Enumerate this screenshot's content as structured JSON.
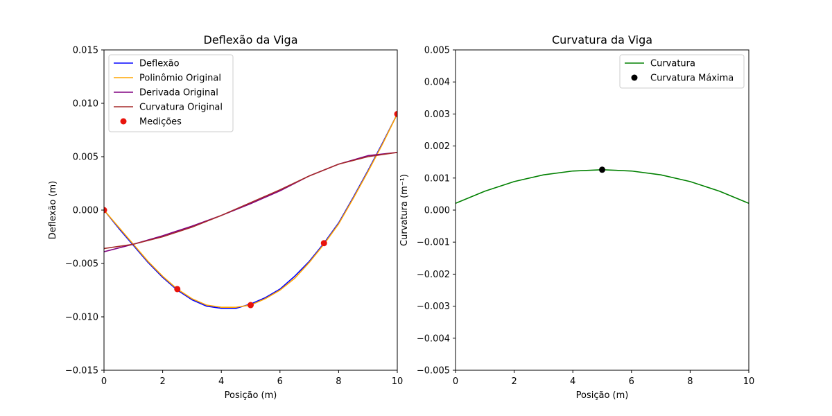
{
  "chart_data": [
    {
      "type": "line",
      "title": "Deflexão da Viga",
      "xlabel": "Posição (m)",
      "ylabel": "Deflexão (m)",
      "xlim": [
        0,
        10
      ],
      "ylim": [
        -0.015,
        0.015
      ],
      "x_ticks": [
        "0",
        "2",
        "4",
        "6",
        "8",
        "10"
      ],
      "y_ticks": [
        "−0.015",
        "−0.010",
        "−0.005",
        "0.000",
        "0.005",
        "0.010",
        "0.015"
      ],
      "x_tick_values": [
        0,
        2,
        4,
        6,
        8,
        10
      ],
      "y_tick_values": [
        -0.015,
        -0.01,
        -0.005,
        0,
        0.005,
        0.01,
        0.015
      ],
      "grid": false,
      "legend_position": "upper-left",
      "series": [
        {
          "name": "Deflexão",
          "color": "#0000ff",
          "x": [
            0,
            0.5,
            1,
            1.5,
            2,
            2.5,
            3,
            3.5,
            4,
            4.3,
            4.5,
            5,
            5.5,
            6,
            6.5,
            7,
            7.5,
            8,
            8.5,
            9,
            9.5,
            10
          ],
          "y": [
            0,
            -0.0017,
            -0.0033,
            -0.0049,
            -0.0063,
            -0.0075,
            -0.0084,
            -0.009,
            -0.0092,
            -0.0092,
            -0.0092,
            -0.0088,
            -0.0082,
            -0.0074,
            -0.0062,
            -0.0048,
            -0.0031,
            -0.0012,
            0.0012,
            0.0037,
            0.0063,
            0.009
          ]
        },
        {
          "name": "Polinômio Original",
          "color": "#ffa500",
          "x": [
            0,
            0.5,
            1,
            1.5,
            2,
            2.5,
            3,
            3.5,
            4,
            4.3,
            4.5,
            5,
            5.5,
            6,
            6.5,
            7,
            7.5,
            8,
            8.5,
            9,
            9.5,
            10
          ],
          "y": [
            0,
            -0.0016,
            -0.0032,
            -0.0048,
            -0.0062,
            -0.0074,
            -0.0083,
            -0.0089,
            -0.0091,
            -0.0091,
            -0.0091,
            -0.0089,
            -0.0083,
            -0.0075,
            -0.0064,
            -0.0049,
            -0.0032,
            -0.0013,
            0.0011,
            0.0036,
            0.0062,
            0.009
          ]
        },
        {
          "name": "Derivada Original",
          "color": "#800080",
          "x": [
            0,
            1,
            2,
            3,
            4,
            5,
            6,
            7,
            8,
            9,
            10
          ],
          "y": [
            -0.0039,
            -0.0032,
            -0.0024,
            -0.0015,
            -0.0005,
            0.0006,
            0.0018,
            0.0032,
            0.0043,
            0.0051,
            0.0054
          ]
        },
        {
          "name": "Curvatura Original",
          "color": "#a52a2a",
          "x": [
            0,
            1,
            2,
            3,
            4,
            5,
            6,
            7,
            8,
            9,
            10
          ],
          "y": [
            -0.0036,
            -0.0032,
            -0.0025,
            -0.0016,
            -0.0005,
            0.0007,
            0.0019,
            0.0032,
            0.0043,
            0.005,
            0.0054
          ]
        }
      ],
      "scatter": {
        "name": "Medições",
        "color": "#e8140c",
        "x": [
          0,
          2.5,
          5,
          7.5,
          10
        ],
        "y": [
          0,
          -0.0074,
          -0.0089,
          -0.0031,
          0.009
        ]
      }
    },
    {
      "type": "line",
      "title": "Curvatura da Viga",
      "xlabel": "Posição (m)",
      "ylabel": "Curvatura (m⁻¹)",
      "xlim": [
        0,
        10
      ],
      "ylim": [
        -0.005,
        0.005
      ],
      "x_ticks": [
        "0",
        "2",
        "4",
        "6",
        "8",
        "10"
      ],
      "y_ticks": [
        "−0.005",
        "−0.004",
        "−0.003",
        "−0.002",
        "−0.001",
        "0.000",
        "0.001",
        "0.002",
        "0.003",
        "0.004",
        "0.005"
      ],
      "x_tick_values": [
        0,
        2,
        4,
        6,
        8,
        10
      ],
      "y_tick_values": [
        -0.005,
        -0.004,
        -0.003,
        -0.002,
        -0.001,
        0,
        0.001,
        0.002,
        0.003,
        0.004,
        0.005
      ],
      "grid": false,
      "legend_position": "upper-right",
      "series": [
        {
          "name": "Curvatura",
          "color": "#008000",
          "x": [
            0,
            1,
            2,
            3,
            4,
            5,
            6,
            7,
            8,
            9,
            10
          ],
          "y": [
            0.00021,
            0.00059,
            0.00089,
            0.0011,
            0.00122,
            0.00126,
            0.00122,
            0.0011,
            0.00089,
            0.00059,
            0.00021
          ]
        }
      ],
      "scatter": {
        "name": "Curvatura Máxima",
        "color": "#000000",
        "x": [
          5
        ],
        "y": [
          0.00126
        ]
      }
    }
  ]
}
